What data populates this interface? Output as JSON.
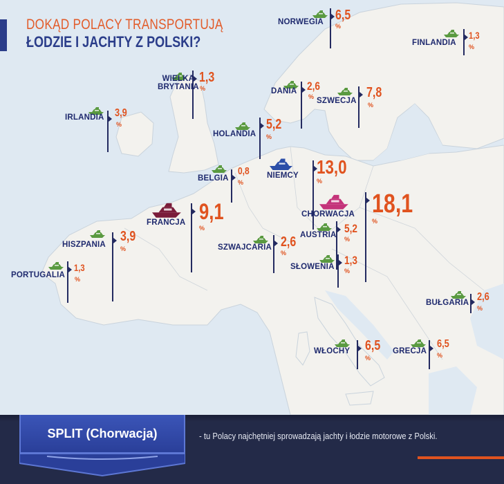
{
  "header": {
    "line1": "DOKĄD POLACY TRANSPORTUJĄ",
    "line2": "ŁODZIE I JACHTY Z POLSKI?"
  },
  "percent_sign": "%",
  "colors": {
    "title_orange": "#e25c2b",
    "title_navy": "#2b3d8a",
    "value_orange": "#e0531f",
    "label_navy": "#1f2a6e",
    "marker_line": "#232a60",
    "boat_green": "#5a9a40",
    "boat_blue": "#2c4fa8",
    "boat_magenta": "#c4337a",
    "boat_maroon": "#7a1c3a",
    "sea": "#dfe9f2",
    "land": "#f3f2ee",
    "footer_bg": "#232a48",
    "badge_blue": "#3249a8"
  },
  "countries": [
    {
      "name": "NORWEGIA",
      "value": "6,5",
      "boat": "green-boat-icon"
    },
    {
      "name": "FINLANDIA",
      "value": "1,3",
      "boat": "green-boat-icon"
    },
    {
      "name": "WIELKA\nBRYTANIA",
      "value": "1,3",
      "boat": "green-boat-icon"
    },
    {
      "name": "DANIA",
      "value": "2,6",
      "boat": "green-boat-icon"
    },
    {
      "name": "SZWECJA",
      "value": "7,8",
      "boat": "green-boat-icon"
    },
    {
      "name": "IRLANDIA",
      "value": "3,9",
      "boat": "green-boat-icon"
    },
    {
      "name": "HOLANDIA",
      "value": "5,2",
      "boat": "green-boat-icon"
    },
    {
      "name": "BELGIA",
      "value": "0,8",
      "boat": "green-boat-icon"
    },
    {
      "name": "NIEMCY",
      "value": "13,0",
      "boat": "blue-boat-icon"
    },
    {
      "name": "CHORWACJA",
      "value": "18,1",
      "boat": "magenta-yacht-icon"
    },
    {
      "name": "FRANCJA",
      "value": "9,1",
      "boat": "maroon-yacht-icon"
    },
    {
      "name": "AUSTRIA",
      "value": "5,2",
      "boat": "green-boat-icon"
    },
    {
      "name": "HISZPANIA",
      "value": "3,9",
      "boat": "green-boat-icon"
    },
    {
      "name": "SZWAJCARIA",
      "value": "2,6",
      "boat": "green-boat-icon"
    },
    {
      "name": "SŁOWENIA",
      "value": "1,3",
      "boat": "green-boat-icon"
    },
    {
      "name": "PORTUGALIA",
      "value": "1,3",
      "boat": "green-boat-icon"
    },
    {
      "name": "BUŁGARIA",
      "value": "2,6",
      "boat": "green-boat-icon"
    },
    {
      "name": "WŁOCHY",
      "value": "6,5",
      "boat": "green-boat-icon"
    },
    {
      "name": "GRECJA",
      "value": "6,5",
      "boat": "green-boat-icon"
    }
  ],
  "footer": {
    "badge": "SPLIT (Chorwacja)",
    "text": "- tu Polacy najchętniej sprowadzają jachty i łodzie motorowe z Polski."
  }
}
